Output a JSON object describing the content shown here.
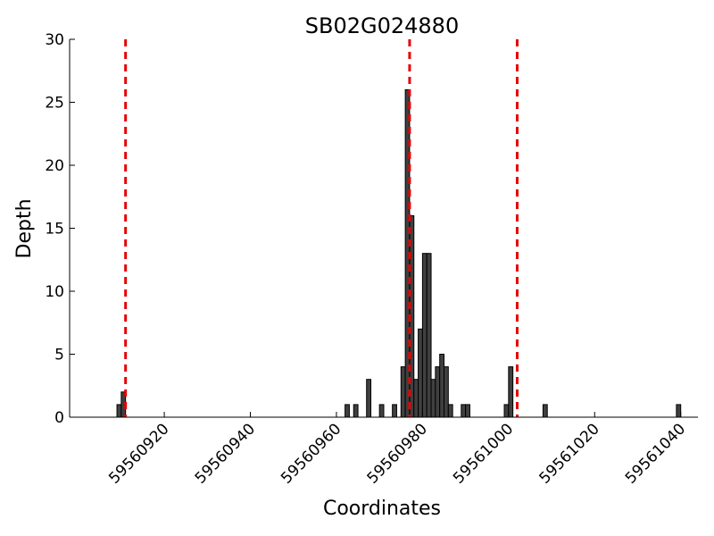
{
  "chart_data": {
    "type": "bar",
    "title": "SB02G024880",
    "xlabel": "Coordinates",
    "ylabel": "Depth",
    "xlim": [
      59560898,
      59561044
    ],
    "ylim": [
      0,
      30
    ],
    "xticks": [
      59560920,
      59560940,
      59560960,
      59560980,
      59561000,
      59561020,
      59561040
    ],
    "yticks": [
      0,
      5,
      10,
      15,
      20,
      25,
      30
    ],
    "grid": false,
    "bar_color": "#404040",
    "bar_edge_color": "#000000",
    "reference_line_color": "#e60000",
    "reference_lines": [
      59560911,
      59560977,
      59561002
    ],
    "x": [
      59560910,
      59560911,
      59560963,
      59560965,
      59560968,
      59560971,
      59560974,
      59560976,
      59560977,
      59560978,
      59560979,
      59560980,
      59560981,
      59560982,
      59560983,
      59560984,
      59560985,
      59560986,
      59560987,
      59560990,
      59560991,
      59561000,
      59561001,
      59561009,
      59561040
    ],
    "values": [
      1,
      2,
      1,
      1,
      3,
      1,
      1,
      4,
      26,
      16,
      3,
      7,
      13,
      13,
      3,
      4,
      5,
      4,
      1,
      1,
      1,
      1,
      4,
      1,
      1
    ]
  }
}
